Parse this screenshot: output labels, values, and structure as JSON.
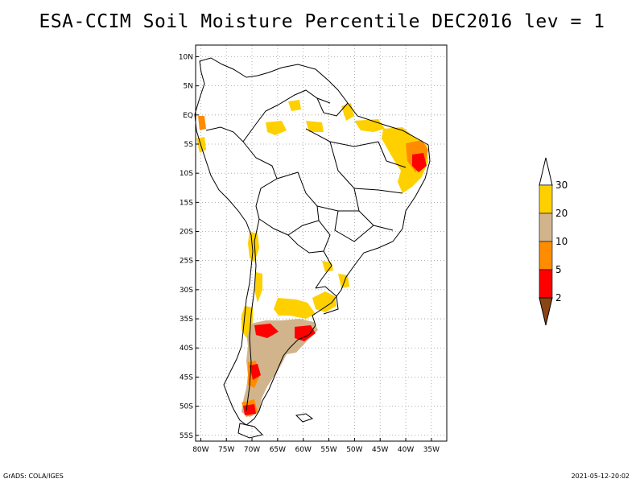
{
  "title": "ESA-CCIM Soil Moisture Percentile DEC2016 lev = 1",
  "footer_left": "GrADS: COLA/IGES",
  "footer_right": "2021-05-12-20:02",
  "map": {
    "lon_range": [
      -81,
      -32
    ],
    "lat_range": [
      -56,
      12
    ],
    "lat_ticks": [
      {
        "value": 10,
        "label": "10N"
      },
      {
        "value": 5,
        "label": "5N"
      },
      {
        "value": 0,
        "label": "EQ"
      },
      {
        "value": -5,
        "label": "5S"
      },
      {
        "value": -10,
        "label": "10S"
      },
      {
        "value": -15,
        "label": "15S"
      },
      {
        "value": -20,
        "label": "20S"
      },
      {
        "value": -25,
        "label": "25S"
      },
      {
        "value": -30,
        "label": "30S"
      },
      {
        "value": -35,
        "label": "35S"
      },
      {
        "value": -40,
        "label": "40S"
      },
      {
        "value": -45,
        "label": "45S"
      },
      {
        "value": -50,
        "label": "50S"
      },
      {
        "value": -55,
        "label": "55S"
      }
    ],
    "lon_ticks": [
      {
        "value": -80,
        "label": "80W"
      },
      {
        "value": -75,
        "label": "75W"
      },
      {
        "value": -70,
        "label": "70W"
      },
      {
        "value": -65,
        "label": "65W"
      },
      {
        "value": -60,
        "label": "60W"
      },
      {
        "value": -55,
        "label": "55W"
      },
      {
        "value": -50,
        "label": "50W"
      },
      {
        "value": -45,
        "label": "45W"
      },
      {
        "value": -40,
        "label": "40W"
      },
      {
        "value": -35,
        "label": "35W"
      }
    ],
    "grid": true
  },
  "colorbar": {
    "levels": [
      {
        "label": "30"
      },
      {
        "label": "20"
      },
      {
        "label": "10"
      },
      {
        "label": "5"
      },
      {
        "label": "2"
      }
    ],
    "colors": [
      "#ffffff",
      "#ffd000",
      "#d2b48c",
      "#ff8c00",
      "#ff0000",
      "#8b4513"
    ]
  },
  "colors": {
    "c30": "#ffd000",
    "c20": "#d2b48c",
    "c10": "#ff8c00",
    "c5": "#ff0000",
    "c2": "#8b4513"
  }
}
